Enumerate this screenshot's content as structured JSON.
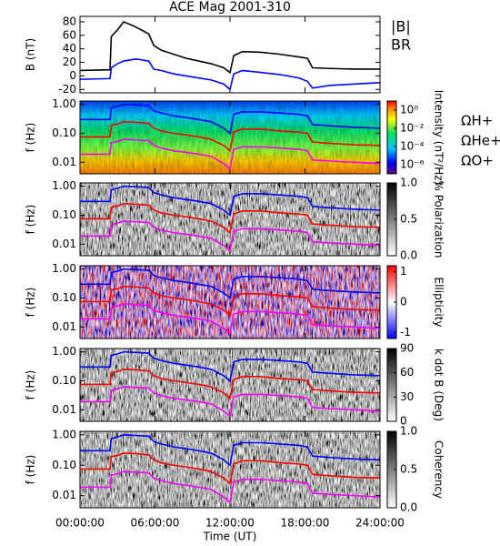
{
  "chart_data": [
    {
      "type": "line",
      "title": "ACE Mag 2001-310",
      "ylabel": "B (nT)",
      "x": [
        0,
        2.4,
        2.5,
        3.0,
        3.5,
        4.5,
        5.5,
        5.9,
        6.5,
        7.5,
        8.5,
        9.5,
        10.5,
        11.5,
        12.0,
        12.3,
        13.0,
        14.5,
        16.0,
        17.5,
        18.2,
        18.6,
        20.0,
        22.0,
        24.0
      ],
      "series": [
        {
          "name": "|B|",
          "color": "#000000",
          "values": [
            8,
            9,
            58,
            68,
            80,
            72,
            62,
            45,
            38,
            32,
            26,
            22,
            18,
            12,
            5,
            30,
            36,
            35,
            32,
            28,
            26,
            12,
            11,
            10,
            10
          ]
        },
        {
          "name": "BR",
          "color": "#0000ff",
          "values": [
            -5,
            -4,
            12,
            18,
            22,
            25,
            22,
            10,
            8,
            3,
            0,
            -3,
            -6,
            -12,
            -20,
            3,
            8,
            5,
            2,
            -3,
            -8,
            -18,
            -14,
            -12,
            -10
          ]
        }
      ],
      "ylim": [
        -25,
        88
      ],
      "yticks": [
        -20,
        0,
        20,
        40,
        60,
        80
      ]
    },
    {
      "type": "spectrogram",
      "ylabel": "f (Hz)",
      "log": true,
      "ylim": [
        0.004,
        1.3
      ],
      "yticks": [
        {
          "value": 1,
          "label": "1.00"
        },
        {
          "value": 0.1,
          "label": "0.10"
        },
        {
          "value": 0.01,
          "label": "0.01"
        }
      ],
      "colormap": "rainbow",
      "clabel": "Intensity (nT²/Hz)",
      "clog": true,
      "clim": [
        1e-07,
        10
      ],
      "cticks": [
        {
          "value": 1,
          "label": "10⁰"
        },
        {
          "value": 0.01,
          "label": "10⁻²"
        },
        {
          "value": 0.0001,
          "label": "10⁻⁴"
        },
        {
          "value": 1e-06,
          "label": "10⁻⁶"
        }
      ],
      "series": [
        {
          "name": "ΩH+",
          "color": "#0000ff",
          "values": [
            0.3,
            0.3,
            0.75,
            0.85,
            1.0,
            0.95,
            0.9,
            0.6,
            0.5,
            0.4,
            0.35,
            0.3,
            0.25,
            0.15,
            0.1,
            0.45,
            0.55,
            0.55,
            0.5,
            0.45,
            0.4,
            0.2,
            0.18,
            0.16,
            0.15
          ]
        },
        {
          "name": "ΩHe+",
          "color": "#ff0000",
          "values": [
            0.075,
            0.075,
            0.19,
            0.21,
            0.25,
            0.24,
            0.22,
            0.15,
            0.12,
            0.1,
            0.088,
            0.075,
            0.062,
            0.038,
            0.025,
            0.11,
            0.14,
            0.14,
            0.12,
            0.11,
            0.1,
            0.05,
            0.045,
            0.04,
            0.038
          ]
        },
        {
          "name": "ΩO+",
          "color": "#ff00ff",
          "values": [
            0.019,
            0.019,
            0.047,
            0.053,
            0.062,
            0.059,
            0.056,
            0.038,
            0.031,
            0.025,
            0.022,
            0.019,
            0.016,
            0.009,
            0.006,
            0.028,
            0.034,
            0.034,
            0.031,
            0.028,
            0.025,
            0.012,
            0.011,
            0.01,
            0.009
          ]
        }
      ]
    },
    {
      "type": "spectrogram",
      "ylabel": "f (Hz)",
      "log": true,
      "ylim": [
        0.004,
        1.3
      ],
      "yticks": [
        {
          "value": 1,
          "label": "1.00"
        },
        {
          "value": 0.1,
          "label": "0.10"
        },
        {
          "value": 0.01,
          "label": "0.01"
        }
      ],
      "colormap": "gray",
      "clabel": "% Polarization",
      "clim": [
        0,
        1
      ],
      "cticks": [
        {
          "value": 0,
          "label": "0.0"
        },
        {
          "value": 0.5,
          "label": "0.5"
        },
        {
          "value": 1,
          "label": "1.0"
        }
      ]
    },
    {
      "type": "spectrogram",
      "ylabel": "f (Hz)",
      "log": true,
      "ylim": [
        0.004,
        1.3
      ],
      "yticks": [
        {
          "value": 1,
          "label": "1.00"
        },
        {
          "value": 0.1,
          "label": "0.10"
        },
        {
          "value": 0.01,
          "label": "0.01"
        }
      ],
      "colormap": "bwr",
      "clabel": "Ellipticity",
      "clim": [
        -1.2,
        1.2
      ],
      "cticks": [
        -1,
        0,
        1
      ]
    },
    {
      "type": "spectrogram",
      "ylabel": "f (Hz)",
      "log": true,
      "ylim": [
        0.004,
        1.3
      ],
      "yticks": [
        {
          "value": 1,
          "label": "1.00"
        },
        {
          "value": 0.1,
          "label": "0.10"
        },
        {
          "value": 0.01,
          "label": "0.01"
        }
      ],
      "colormap": "gray",
      "clabel": "k dot B (Deg)",
      "clim": [
        0,
        90
      ],
      "cticks": [
        0,
        30,
        60,
        90
      ]
    },
    {
      "type": "spectrogram",
      "ylabel": "f (Hz)",
      "log": true,
      "ylim": [
        0.004,
        1.3
      ],
      "yticks": [
        {
          "value": 1,
          "label": "1.00"
        },
        {
          "value": 0.1,
          "label": "0.10"
        },
        {
          "value": 0.01,
          "label": "0.01"
        }
      ],
      "colormap": "gray",
      "clabel": "Coherency",
      "clim": [
        0,
        1
      ],
      "cticks": [
        {
          "value": 0,
          "label": "0.0"
        },
        {
          "value": 0.5,
          "label": "0.5"
        },
        {
          "value": 1,
          "label": "1.0"
        }
      ],
      "xlabel": "Time (UT)",
      "xlim": [
        0,
        24
      ],
      "xticks": [
        {
          "value": 0,
          "label": "00:00:00"
        },
        {
          "value": 6,
          "label": "06:00:00"
        },
        {
          "value": 12,
          "label": "12:00:00"
        },
        {
          "value": 18,
          "label": "18:00:00"
        },
        {
          "value": 24,
          "label": "24:00:00"
        }
      ]
    }
  ]
}
